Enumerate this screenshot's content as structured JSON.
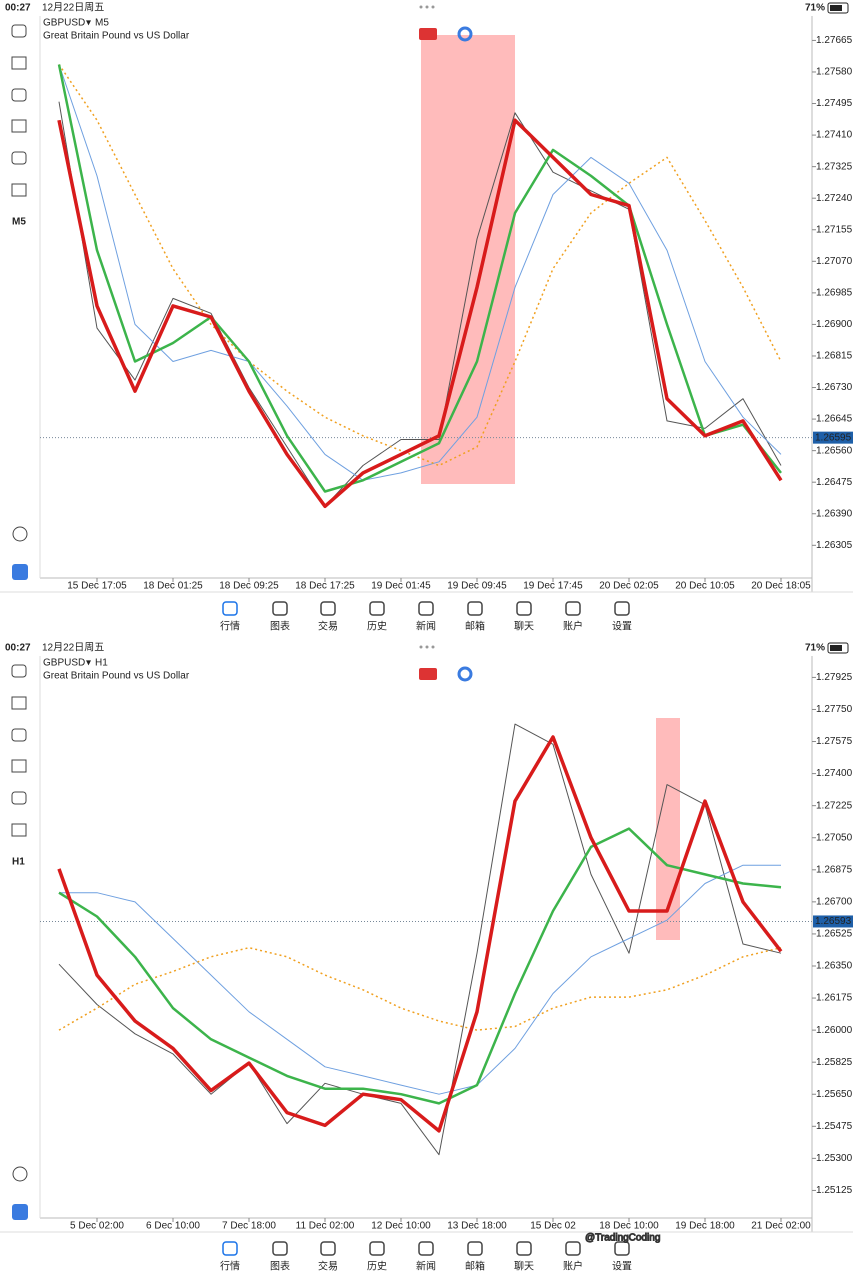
{
  "status": {
    "time": "00:27",
    "date": "12月22日周五",
    "battery": "71%"
  },
  "symbol": "GBPUSD",
  "description": "Great Britain Pound vs US Dollar",
  "screens": [
    {
      "timeframe": "M5"
    },
    {
      "timeframe": "H1"
    }
  ],
  "tabs": [
    "行情",
    "图表",
    "交易",
    "历史",
    "新闻",
    "邮箱",
    "聊天",
    "账户",
    "设置"
  ],
  "watermark": "@TradingCoding",
  "chart_data": [
    {
      "type": "line",
      "categories": [
        null,
        "15 Dec 17:05",
        null,
        "18 Dec 01:25",
        null,
        "18 Dec 09:25",
        null,
        "18 Dec 17:25",
        null,
        "19 Dec 01:45",
        null,
        "19 Dec 09:45",
        null,
        "19 Dec 17:45",
        null,
        "20 Dec 02:05",
        null,
        "20 Dec 10:05",
        null,
        "20 Dec 18:05"
      ],
      "series": [
        {
          "color": "#555555",
          "values": [
            1.275,
            1.2689,
            1.2675,
            1.2697,
            1.2693,
            1.2673,
            1.2657,
            1.2641,
            1.2652,
            1.2659,
            1.2659,
            1.2713,
            1.2747,
            1.2731,
            1.2726,
            1.2721,
            1.2664,
            1.2662,
            1.267,
            1.2652
          ]
        },
        {
          "color": "#6fa0e0",
          "values": [
            1.276,
            1.273,
            1.269,
            1.268,
            1.2683,
            1.268,
            1.2668,
            1.2655,
            1.2648,
            1.265,
            1.2653,
            1.2665,
            1.27,
            1.2725,
            1.2735,
            1.2728,
            1.271,
            1.268,
            1.2665,
            1.2655
          ]
        },
        {
          "color": "#f0a020",
          "line_style": "dotted",
          "values": [
            1.276,
            1.2745,
            1.2725,
            1.2705,
            1.269,
            1.268,
            1.2672,
            1.2665,
            1.266,
            1.2656,
            1.2652,
            1.2657,
            1.268,
            1.2705,
            1.272,
            1.2728,
            1.2735,
            1.2718,
            1.27,
            1.268
          ]
        },
        {
          "color": "#3cb44b",
          "values": [
            1.276,
            1.271,
            1.268,
            1.2685,
            1.2692,
            1.268,
            1.266,
            1.2645,
            1.2648,
            1.2653,
            1.2658,
            1.268,
            1.272,
            1.2737,
            1.273,
            1.2722,
            1.269,
            1.266,
            1.2663,
            1.265
          ]
        },
        {
          "color": "#d81b1b",
          "values": [
            1.2745,
            1.2695,
            1.2672,
            1.2695,
            1.2692,
            1.2672,
            1.2655,
            1.2641,
            1.265,
            1.2655,
            1.266,
            1.27,
            1.2745,
            1.2735,
            1.2725,
            1.2722,
            1.267,
            1.266,
            1.2664,
            1.2648
          ]
        }
      ],
      "ylim": [
        1.2619,
        1.2772
      ],
      "yticks": [
        {
          "value": 1.27665,
          "label": "1.27665"
        },
        {
          "value": 1.2758,
          "label": "1.27580"
        },
        {
          "value": 1.27495,
          "label": "1.27495"
        },
        {
          "value": 1.2741,
          "label": "1.27410"
        },
        {
          "value": 1.27325,
          "label": "1.27325"
        },
        {
          "value": 1.2724,
          "label": "1.27240"
        },
        {
          "value": 1.27155,
          "label": "1.27155"
        },
        {
          "value": 1.2707,
          "label": "1.27070"
        },
        {
          "value": 1.26985,
          "label": "1.26985"
        },
        {
          "value": 1.269,
          "label": "1.26900"
        },
        {
          "value": 1.26815,
          "label": "1.26815"
        },
        {
          "value": 1.2673,
          "label": "1.26730"
        },
        {
          "value": 1.26645,
          "label": "1.26645"
        },
        {
          "value": 1.2656,
          "label": "1.26560"
        },
        {
          "value": 1.26475,
          "label": "1.26475"
        },
        {
          "value": 1.2639,
          "label": "1.26390"
        },
        {
          "value": 1.26305,
          "label": "1.26305"
        }
      ],
      "current_price": 1.26595
    },
    {
      "type": "line",
      "categories": [
        null,
        "5 Dec 02:00",
        null,
        "6 Dec 10:00",
        null,
        "7 Dec 18:00",
        null,
        "11 Dec 02:00",
        null,
        "12 Dec 10:00",
        null,
        "13 Dec 18:00",
        null,
        "15 Dec 02",
        null,
        "18 Dec 10:00",
        null,
        "19 Dec 18:00",
        null,
        "21 Dec 02:00"
      ],
      "series": [
        {
          "color": "#555555",
          "values": [
            1.2636,
            1.2614,
            1.2598,
            1.2587,
            1.2565,
            1.2582,
            1.2549,
            1.2571,
            1.2565,
            1.256,
            1.2532,
            1.2642,
            1.2767,
            1.2756,
            1.2685,
            1.2642,
            1.2734,
            1.2723,
            1.2647,
            1.2642
          ]
        },
        {
          "color": "#6fa0e0",
          "values": [
            1.2675,
            1.2675,
            1.267,
            1.265,
            1.263,
            1.261,
            1.2595,
            1.258,
            1.2575,
            1.257,
            1.2565,
            1.257,
            1.259,
            1.262,
            1.264,
            1.265,
            1.266,
            1.268,
            1.269,
            1.269
          ]
        },
        {
          "color": "#f0a020",
          "line_style": "dotted",
          "values": [
            1.26,
            1.2612,
            1.2625,
            1.2632,
            1.264,
            1.2645,
            1.264,
            1.263,
            1.2622,
            1.2612,
            1.2605,
            1.26,
            1.2602,
            1.2612,
            1.2618,
            1.2618,
            1.2622,
            1.263,
            1.264,
            1.2645
          ]
        },
        {
          "color": "#3cb44b",
          "values": [
            1.2675,
            1.2662,
            1.264,
            1.2612,
            1.2595,
            1.2585,
            1.2575,
            1.2568,
            1.2568,
            1.2565,
            1.256,
            1.257,
            1.262,
            1.2665,
            1.27,
            1.271,
            1.269,
            1.2685,
            1.268,
            1.2678
          ]
        },
        {
          "color": "#d81b1b",
          "values": [
            1.2688,
            1.263,
            1.2605,
            1.259,
            1.2567,
            1.2582,
            1.2555,
            1.2548,
            1.2565,
            1.2562,
            1.2545,
            1.261,
            1.2725,
            1.276,
            1.2705,
            1.2665,
            1.2665,
            1.2725,
            1.267,
            1.2643
          ]
        }
      ],
      "ylim": [
        1.2492,
        1.2802
      ],
      "yticks": [
        {
          "value": 1.27925,
          "label": "1.27925"
        },
        {
          "value": 1.2775,
          "label": "1.27750"
        },
        {
          "value": 1.27575,
          "label": "1.27575"
        },
        {
          "value": 1.274,
          "label": "1.27400"
        },
        {
          "value": 1.27225,
          "label": "1.27225"
        },
        {
          "value": 1.2705,
          "label": "1.27050"
        },
        {
          "value": 1.26875,
          "label": "1.26875"
        },
        {
          "value": 1.267,
          "label": "1.26700"
        },
        {
          "value": 1.26525,
          "label": "1.26525"
        },
        {
          "value": 1.2635,
          "label": "1.26350"
        },
        {
          "value": 1.26175,
          "label": "1.26175"
        },
        {
          "value": 1.26,
          "label": "1.26000"
        },
        {
          "value": 1.25825,
          "label": "1.25825"
        },
        {
          "value": 1.2565,
          "label": "1.25650"
        },
        {
          "value": 1.25475,
          "label": "1.25475"
        },
        {
          "value": 1.253,
          "label": "1.25300"
        },
        {
          "value": 1.25125,
          "label": "1.25125"
        }
      ],
      "current_price": 1.26593
    }
  ]
}
